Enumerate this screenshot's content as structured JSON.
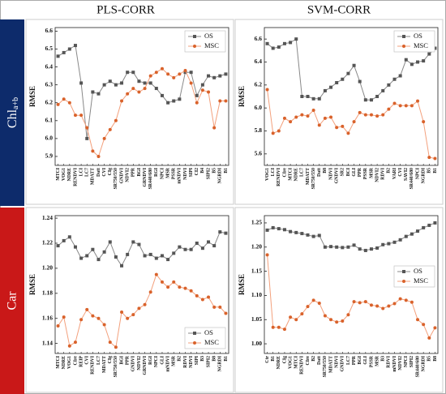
{
  "columns": [
    "PLS-CORR",
    "SVM-CORR"
  ],
  "rows": [
    {
      "main": "Chl",
      "sub": "a+b"
    },
    "Car"
  ],
  "chart_data": [
    {
      "type": "line",
      "ylabel": "RMSE",
      "legend": "upper right",
      "categories": [
        "MTCI",
        "VOG1",
        "NDRE",
        "RENDVI",
        "LCI",
        "LC7",
        "MDATT",
        "Datt",
        "CVI",
        "CIg",
        "SR750/550",
        "GNDVI",
        "NDVI2",
        "PPR",
        "BGI",
        "GRNDVI",
        "SR440/680",
        "RGI",
        "NPCI",
        "MSR",
        "PSSR",
        "mNDVI",
        "NDVI",
        "SIPI",
        "CI2",
        "B4",
        "SIPI2",
        "B5",
        "NGRDI",
        "B1"
      ],
      "series": [
        {
          "name": "OS",
          "color": "#555555",
          "line": "#888888",
          "marker": "square",
          "values": [
            6.46,
            6.48,
            6.5,
            6.52,
            6.31,
            6.0,
            6.26,
            6.25,
            6.3,
            6.32,
            6.3,
            6.31,
            6.37,
            6.37,
            6.32,
            6.31,
            6.31,
            6.28,
            6.24,
            6.2,
            6.21,
            6.22,
            6.37,
            6.37,
            6.24,
            6.3,
            6.35,
            6.34,
            6.35,
            6.36
          ]
        },
        {
          "name": "MSC",
          "color": "#d9622b",
          "line": "#f3a07c",
          "marker": "circle",
          "values": [
            6.19,
            6.22,
            6.2,
            6.13,
            6.13,
            6.06,
            5.93,
            5.9,
            6.0,
            6.05,
            6.1,
            6.21,
            6.25,
            6.28,
            6.26,
            6.28,
            6.35,
            6.37,
            6.39,
            6.36,
            6.34,
            6.36,
            6.38,
            6.31,
            6.2,
            6.27,
            6.26,
            6.06,
            6.21,
            6.21
          ]
        }
      ],
      "ylim": [
        5.85,
        6.62
      ],
      "yticks": [
        {
          "value": 5.9,
          "label": "5.9"
        },
        {
          "value": 6.0,
          "label": "6.0"
        },
        {
          "value": 6.1,
          "label": "6.1"
        },
        {
          "value": 6.2,
          "label": "6.2"
        },
        {
          "value": 6.3,
          "label": "6.3"
        },
        {
          "value": 6.4,
          "label": "6.4"
        },
        {
          "value": 6.5,
          "label": "6.5"
        },
        {
          "value": 6.6,
          "label": "6.6"
        }
      ]
    },
    {
      "type": "line",
      "ylabel": "RMSE",
      "legend": "upper right",
      "categories": [
        "VOG1",
        "LCI",
        "RENDVI",
        "CIre",
        "MTCI",
        "NDRE",
        "LC7",
        "MDATT",
        "SR750/550",
        "Datt",
        "B8",
        "NDVI",
        "GNDVI",
        "SR2",
        "BCI",
        "GLI",
        "PPR",
        "PSSR",
        "MSR",
        "NDVI2",
        "RDVI",
        "B2",
        "VARI",
        "CVI",
        "SAVI2",
        "SR440/680",
        "NPCI",
        "NGRDI",
        "B5",
        "B1"
      ],
      "series": [
        {
          "name": "OS",
          "color": "#555555",
          "line": "#888888",
          "marker": "square",
          "values": [
            6.56,
            6.52,
            6.53,
            6.56,
            6.57,
            6.6,
            6.1,
            6.1,
            6.08,
            6.08,
            6.15,
            6.18,
            6.22,
            6.25,
            6.3,
            6.37,
            6.23,
            6.07,
            6.07,
            6.1,
            6.15,
            6.2,
            6.25,
            6.28,
            6.42,
            6.38,
            6.4,
            6.41,
            6.47,
            6.52
          ]
        },
        {
          "name": "MSC",
          "color": "#d9622b",
          "line": "#f3a07c",
          "marker": "circle",
          "values": [
            6.16,
            5.78,
            5.8,
            5.91,
            5.88,
            5.92,
            5.94,
            5.93,
            5.98,
            5.85,
            5.91,
            5.92,
            5.83,
            5.84,
            5.78,
            5.88,
            5.96,
            5.94,
            5.94,
            5.93,
            5.94,
            5.99,
            6.04,
            6.02,
            6.02,
            6.02,
            6.06,
            5.88,
            5.57,
            5.56
          ]
        }
      ],
      "ylim": [
        5.5,
        6.7
      ],
      "yticks": [
        {
          "value": 5.6,
          "label": "5.6"
        },
        {
          "value": 5.8,
          "label": "5.8"
        },
        {
          "value": 6.0,
          "label": "6.0"
        },
        {
          "value": 6.2,
          "label": "6.2"
        },
        {
          "value": 6.4,
          "label": "6.4"
        },
        {
          "value": 6.6,
          "label": "6.6"
        }
      ]
    },
    {
      "type": "line",
      "ylabel": "RMSE",
      "legend": "lower right",
      "categories": [
        "MTCI",
        "NDRE",
        "VOG1",
        "CIre",
        "REIP",
        "CVI",
        "RENDVI",
        "LC7",
        "MDATT",
        "CIg",
        "SR750/550",
        "BGI",
        "PPR",
        "GNDVI",
        "NDVI2",
        "GRNDVI",
        "RGI",
        "NPCI",
        "GLI",
        "mNDVI",
        "MSR",
        "B2",
        "RDVI",
        "NDVI",
        "SIPI",
        "B3",
        "SIPI2",
        "B8",
        "NGRDI",
        "B1"
      ],
      "series": [
        {
          "name": "OS",
          "color": "#555555",
          "line": "#888888",
          "marker": "square",
          "values": [
            1.218,
            1.222,
            1.225,
            1.217,
            1.208,
            1.21,
            1.215,
            1.207,
            1.213,
            1.221,
            1.209,
            1.202,
            1.211,
            1.221,
            1.219,
            1.21,
            1.211,
            1.208,
            1.21,
            1.207,
            1.212,
            1.217,
            1.215,
            1.215,
            1.22,
            1.216,
            1.221,
            1.218,
            1.229,
            1.228
          ]
        },
        {
          "name": "MSC",
          "color": "#d9622b",
          "line": "#f3a07c",
          "marker": "circle",
          "values": [
            1.154,
            1.161,
            1.138,
            1.141,
            1.159,
            1.167,
            1.162,
            1.16,
            1.155,
            1.141,
            1.137,
            1.165,
            1.16,
            1.163,
            1.168,
            1.171,
            1.181,
            1.195,
            1.189,
            1.185,
            1.189,
            1.185,
            1.184,
            1.182,
            1.178,
            1.175,
            1.177,
            1.169,
            1.169,
            1.164
          ]
        }
      ],
      "ylim": [
        1.132,
        1.242
      ],
      "yticks": [
        {
          "value": 1.14,
          "label": "1.14"
        },
        {
          "value": 1.16,
          "label": "1.16"
        },
        {
          "value": 1.18,
          "label": "1.18"
        },
        {
          "value": 1.2,
          "label": "1.20"
        },
        {
          "value": 1.22,
          "label": "1.22"
        },
        {
          "value": 1.24,
          "label": "1.24"
        }
      ]
    },
    {
      "type": "line",
      "ylabel": "RMSE",
      "legend": "middle right",
      "categories": [
        "Ctr",
        "B1",
        "NDRE",
        "CIg",
        "VOG1",
        "MTCI",
        "RENDVI",
        "CIre",
        "B2",
        "Datt",
        "SR750/550",
        "MDATT",
        "NDVI",
        "GNDVI",
        "LC7",
        "PPR",
        "BGI",
        "GLI",
        "PSSR",
        "MSR",
        "B3",
        "RDVI",
        "mNDVI",
        "NDVI2",
        "NPCI",
        "SIPI2",
        "SR440/680",
        "NGRDI",
        "B5",
        "B8"
      ],
      "series": [
        {
          "name": "OS",
          "color": "#555555",
          "line": "#888888",
          "marker": "square",
          "values": [
            1.235,
            1.24,
            1.238,
            1.236,
            1.232,
            1.23,
            1.228,
            1.225,
            1.222,
            1.224,
            1.2,
            1.201,
            1.2,
            1.199,
            1.2,
            1.204,
            1.196,
            1.193,
            1.196,
            1.198,
            1.205,
            1.207,
            1.21,
            1.215,
            1.222,
            1.227,
            1.233,
            1.24,
            1.245,
            1.25
          ]
        },
        {
          "name": "MSC",
          "color": "#d9622b",
          "line": "#f3a07c",
          "marker": "circle",
          "values": [
            1.184,
            1.034,
            1.034,
            1.03,
            1.055,
            1.05,
            1.062,
            1.077,
            1.09,
            1.084,
            1.058,
            1.05,
            1.045,
            1.047,
            1.06,
            1.087,
            1.085,
            1.087,
            1.08,
            1.078,
            1.073,
            1.078,
            1.083,
            1.093,
            1.09,
            1.086,
            1.05,
            1.04,
            1.012,
            1.033
          ]
        }
      ],
      "ylim": [
        0.98,
        1.265
      ],
      "yticks": [
        {
          "value": 1.0,
          "label": "1.00"
        },
        {
          "value": 1.05,
          "label": "1.05"
        },
        {
          "value": 1.1,
          "label": "1.10"
        },
        {
          "value": 1.15,
          "label": "1.15"
        },
        {
          "value": 1.2,
          "label": "1.20"
        },
        {
          "value": 1.25,
          "label": "1.25"
        }
      ]
    }
  ]
}
